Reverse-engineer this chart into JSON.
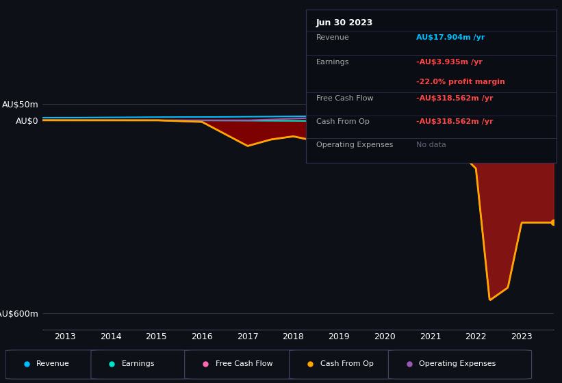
{
  "background_color": "#0d1117",
  "colors": {
    "revenue": "#00bfff",
    "earnings": "#00e5cc",
    "free_cash_flow": "#ff69b4",
    "cash_from_op": "#ffa500",
    "operating_expenses": "#9b59b6"
  },
  "info_box": {
    "title": "Jun 30 2023",
    "revenue_label": "Revenue",
    "revenue_value": "AU$17.904m /yr",
    "earnings_label": "Earnings",
    "earnings_value": "-AU$3.935m /yr",
    "margin_value": "-22.0% profit margin",
    "fcf_label": "Free Cash Flow",
    "fcf_value": "-AU$318.562m /yr",
    "cop_label": "Cash From Op",
    "cop_value": "-AU$318.562m /yr",
    "opex_label": "Operating Expenses",
    "opex_value": "No data"
  },
  "legend_items": [
    {
      "label": "Revenue",
      "color": "#00bfff"
    },
    {
      "label": "Earnings",
      "color": "#00e5cc"
    },
    {
      "label": "Free Cash Flow",
      "color": "#ff69b4"
    },
    {
      "label": "Cash From Op",
      "color": "#ffa500"
    },
    {
      "label": "Operating Expenses",
      "color": "#9b59b6"
    }
  ]
}
